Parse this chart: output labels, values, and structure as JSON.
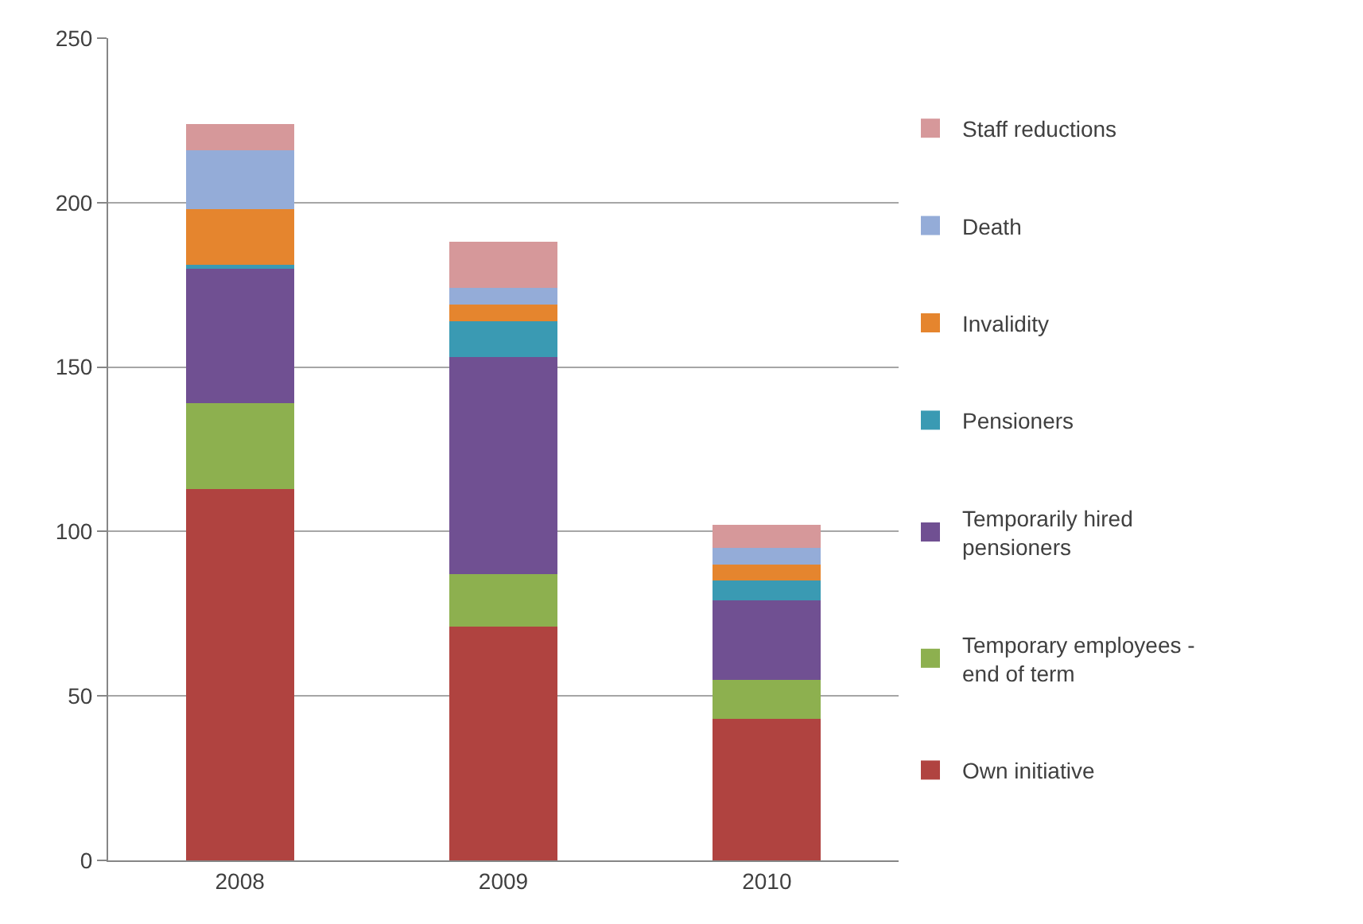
{
  "chart_data": {
    "type": "bar",
    "stacked": true,
    "categories": [
      "2008",
      "2009",
      "2010"
    ],
    "ylim": [
      0,
      250
    ],
    "yticks": [
      0,
      50,
      100,
      150,
      200,
      250
    ],
    "grid": "y",
    "legend": "right",
    "series": [
      {
        "name": "Own initiative",
        "color": "#b04340",
        "values": [
          113,
          71,
          43
        ]
      },
      {
        "name": "Temporary employees - end of term",
        "color": "#8db04f",
        "values": [
          26,
          16,
          12
        ]
      },
      {
        "name": "Temporarily hired pensioners",
        "color": "#705092",
        "values": [
          41,
          66,
          24
        ]
      },
      {
        "name": "Pensioners",
        "color": "#3a9ab3",
        "values": [
          1,
          11,
          6
        ]
      },
      {
        "name": "Invalidity",
        "color": "#e5852e",
        "values": [
          17,
          5,
          5
        ]
      },
      {
        "name": "Death",
        "color": "#94acd8",
        "values": [
          18,
          5,
          5
        ]
      },
      {
        "name": "Staff reductions",
        "color": "#d6989a",
        "values": [
          8,
          14,
          7
        ]
      }
    ]
  }
}
